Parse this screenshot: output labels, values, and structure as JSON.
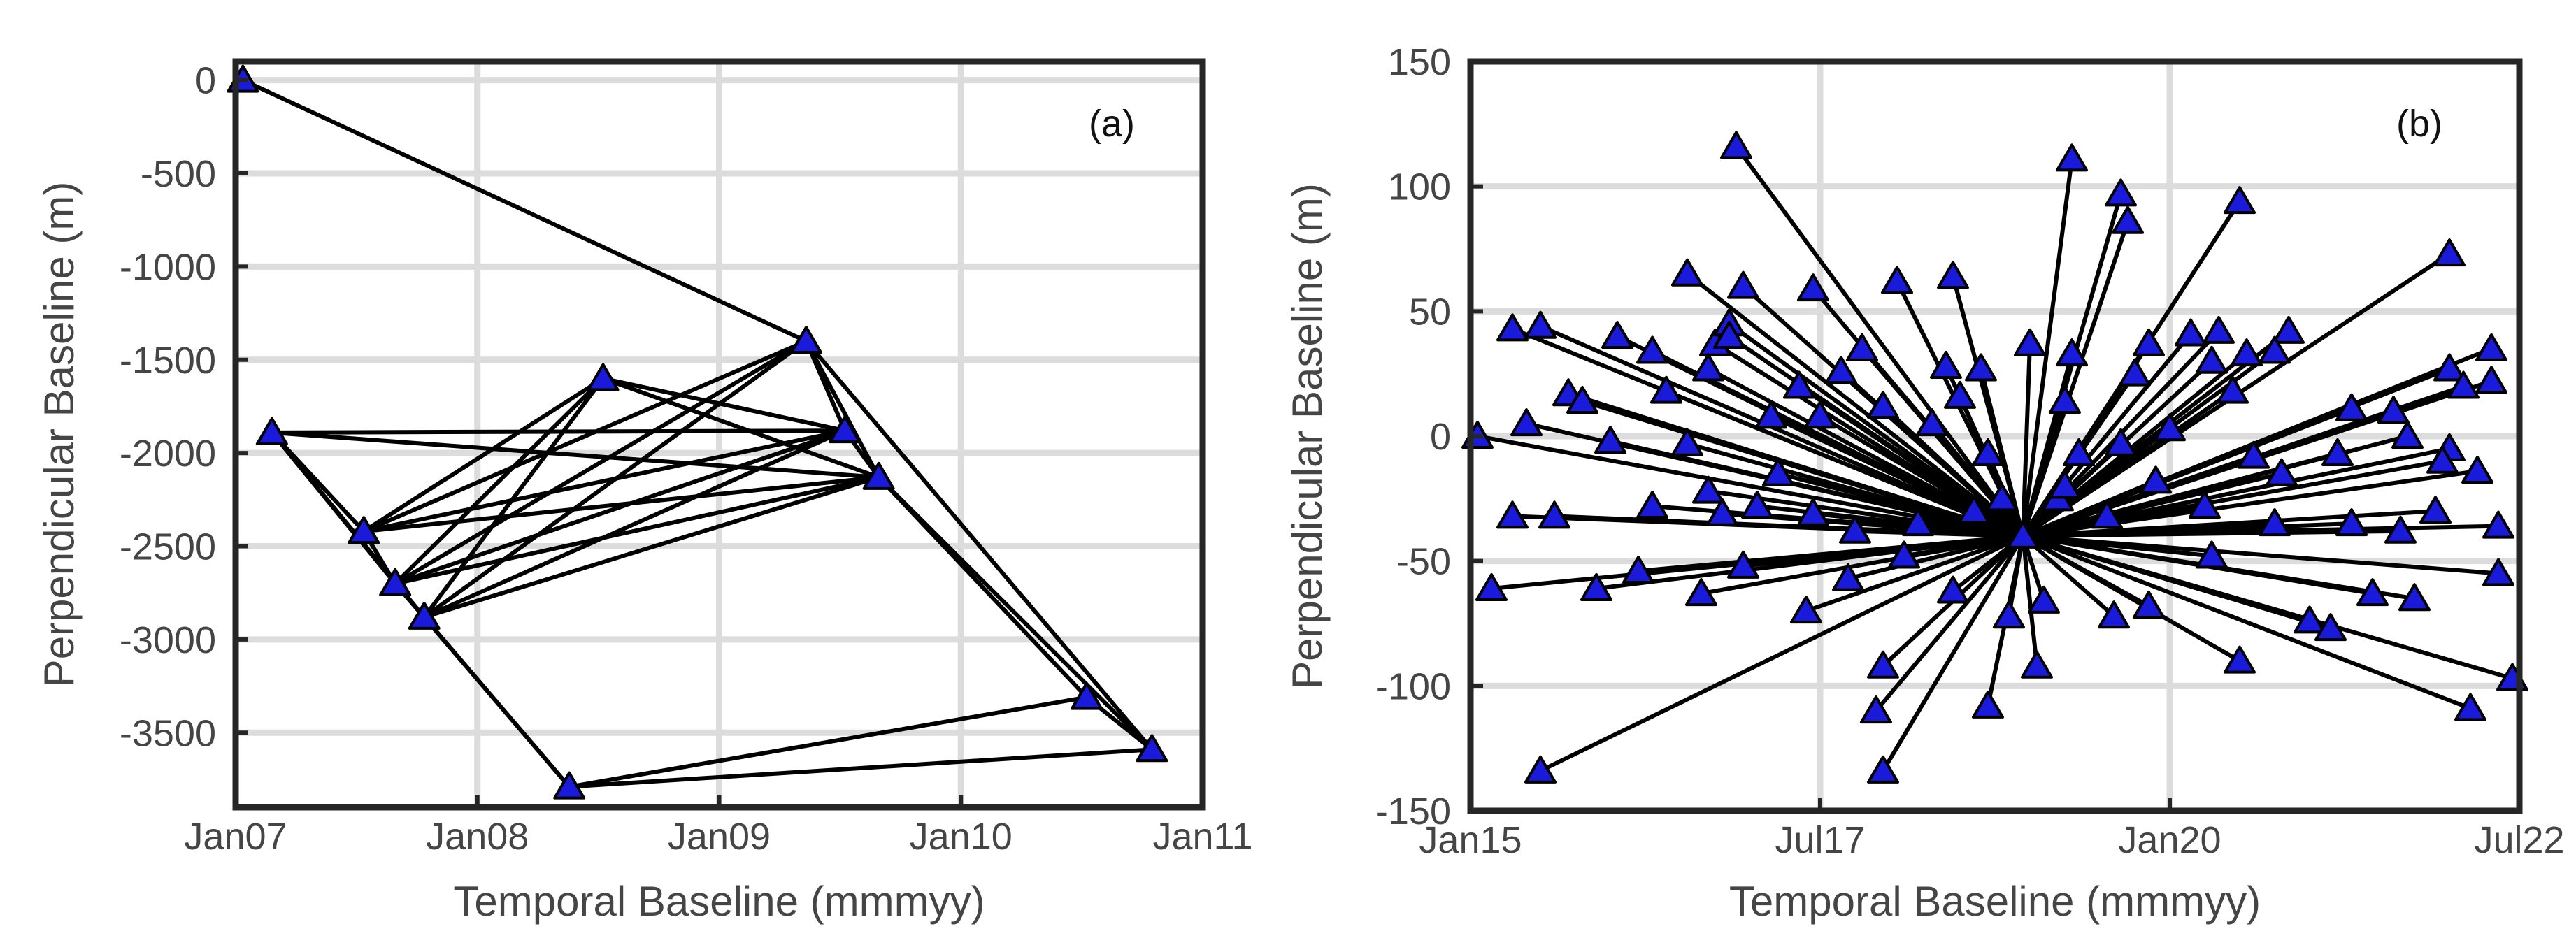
{
  "colors": {
    "marker": "#1a1adb",
    "edge": "#000000",
    "grid": "#dcdcdc",
    "frame": "#262626",
    "text": "#454545"
  },
  "chart_data": [
    {
      "type": "scatter",
      "panel_label": "(a)",
      "title": "",
      "xlabel": "Temporal Baseline (mmmyy)",
      "ylabel": "Perpendicular Baseline (m)",
      "xlim": [
        2007.0,
        2011.0
      ],
      "ylim": [
        -3900,
        100
      ],
      "x_ticks": [
        2007,
        2008,
        2009,
        2010,
        2011
      ],
      "x_tick_labels": [
        "Jan07",
        "Jan08",
        "Jan09",
        "Jan10",
        "Jan11"
      ],
      "y_ticks": [
        0,
        -500,
        -1000,
        -1500,
        -2000,
        -2500,
        -3000,
        -3500
      ],
      "y_tick_labels": [
        "0",
        "-500",
        "-1000",
        "-1500",
        "-2000",
        "-2500",
        "-3000",
        "-3500"
      ],
      "grid": true,
      "nodes": [
        [
          2007.03,
          0
        ],
        [
          2007.15,
          -1890
        ],
        [
          2007.53,
          -2420
        ],
        [
          2007.66,
          -2700
        ],
        [
          2007.78,
          -2880
        ],
        [
          2008.38,
          -3790
        ],
        [
          2008.52,
          -1600
        ],
        [
          2009.36,
          -1400
        ],
        [
          2009.52,
          -1880
        ],
        [
          2009.66,
          -2130
        ],
        [
          2010.52,
          -3310
        ],
        [
          2010.79,
          -3590
        ]
      ],
      "edges": [
        [
          0,
          7
        ],
        [
          1,
          2
        ],
        [
          1,
          3
        ],
        [
          1,
          4
        ],
        [
          1,
          8
        ],
        [
          1,
          9
        ],
        [
          2,
          3
        ],
        [
          2,
          6
        ],
        [
          2,
          7
        ],
        [
          2,
          8
        ],
        [
          2,
          9
        ],
        [
          3,
          4
        ],
        [
          3,
          5
        ],
        [
          3,
          6
        ],
        [
          3,
          7
        ],
        [
          3,
          8
        ],
        [
          3,
          9
        ],
        [
          4,
          5
        ],
        [
          4,
          6
        ],
        [
          4,
          7
        ],
        [
          4,
          8
        ],
        [
          4,
          9
        ],
        [
          5,
          10
        ],
        [
          5,
          11
        ],
        [
          6,
          8
        ],
        [
          6,
          9
        ],
        [
          7,
          8
        ],
        [
          7,
          9
        ],
        [
          7,
          11
        ],
        [
          8,
          9
        ],
        [
          9,
          10
        ],
        [
          9,
          11
        ],
        [
          10,
          11
        ]
      ]
    },
    {
      "type": "scatter",
      "panel_label": "(b)",
      "title": "",
      "xlabel": "Temporal Baseline (mmmyy)",
      "ylabel": "Perpendicular Baseline (m)",
      "xlim": [
        2015.0,
        2022.5
      ],
      "ylim": [
        -150,
        150
      ],
      "x_ticks": [
        2015.0,
        2017.5,
        2020.0,
        2022.5
      ],
      "x_tick_labels": [
        "Jan15",
        "Jul17",
        "Jan20",
        "Jul22"
      ],
      "y_ticks": [
        150,
        100,
        50,
        0,
        -50,
        -100,
        -150
      ],
      "y_tick_labels": [
        "150",
        "100",
        "50",
        "0",
        "-50",
        "-100",
        "-150"
      ],
      "grid": true,
      "hub": [
        2018.95,
        -40
      ],
      "nodes": [
        [
          2016.9,
          116
        ],
        [
          2019.3,
          111
        ],
        [
          2019.65,
          97
        ],
        [
          2019.7,
          86
        ],
        [
          2020.5,
          94
        ],
        [
          2022.0,
          73
        ],
        [
          2016.55,
          65
        ],
        [
          2016.95,
          60
        ],
        [
          2017.45,
          59
        ],
        [
          2018.05,
          62
        ],
        [
          2018.45,
          64
        ],
        [
          2015.3,
          43
        ],
        [
          2015.5,
          44
        ],
        [
          2016.05,
          40
        ],
        [
          2016.3,
          34
        ],
        [
          2016.75,
          37
        ],
        [
          2016.85,
          45
        ],
        [
          2016.85,
          40
        ],
        [
          2017.8,
          35
        ],
        [
          2018.65,
          27
        ],
        [
          2019.0,
          37
        ],
        [
          2019.3,
          33
        ],
        [
          2019.85,
          37
        ],
        [
          2020.15,
          41
        ],
        [
          2020.35,
          42
        ],
        [
          2020.55,
          33
        ],
        [
          2020.85,
          42
        ],
        [
          2020.75,
          34
        ],
        [
          2022.3,
          35
        ],
        [
          2022.0,
          27
        ],
        [
          2015.7,
          17
        ],
        [
          2015.8,
          14
        ],
        [
          2016.4,
          18
        ],
        [
          2016.7,
          27
        ],
        [
          2017.35,
          20
        ],
        [
          2017.65,
          26
        ],
        [
          2018.4,
          28
        ],
        [
          2018.5,
          16
        ],
        [
          2019.25,
          14
        ],
        [
          2019.75,
          25
        ],
        [
          2020.3,
          30
        ],
        [
          2020.45,
          18
        ],
        [
          2021.3,
          11
        ],
        [
          2021.6,
          10
        ],
        [
          2022.1,
          20
        ],
        [
          2022.3,
          22
        ],
        [
          2015.05,
          0
        ],
        [
          2015.4,
          5
        ],
        [
          2016.0,
          -2
        ],
        [
          2016.55,
          -3
        ],
        [
          2017.15,
          8
        ],
        [
          2017.5,
          8
        ],
        [
          2017.95,
          12
        ],
        [
          2018.3,
          5
        ],
        [
          2018.7,
          -7
        ],
        [
          2019.35,
          -7
        ],
        [
          2019.65,
          -3
        ],
        [
          2020.0,
          3
        ],
        [
          2020.6,
          -8
        ],
        [
          2021.2,
          -7
        ],
        [
          2021.7,
          0
        ],
        [
          2022.0,
          -5
        ],
        [
          2022.2,
          -14
        ],
        [
          2015.3,
          -32
        ],
        [
          2015.6,
          -32
        ],
        [
          2016.3,
          -28
        ],
        [
          2016.7,
          -22
        ],
        [
          2016.8,
          -31
        ],
        [
          2017.05,
          -28
        ],
        [
          2017.45,
          -31
        ],
        [
          2017.75,
          -38
        ],
        [
          2018.2,
          -35
        ],
        [
          2018.6,
          -30
        ],
        [
          2019.2,
          -25
        ],
        [
          2019.55,
          -32
        ],
        [
          2020.25,
          -28
        ],
        [
          2020.75,
          -35
        ],
        [
          2021.3,
          -35
        ],
        [
          2021.65,
          -38
        ],
        [
          2021.9,
          -30
        ],
        [
          2022.35,
          -36
        ],
        [
          2015.15,
          -61
        ],
        [
          2015.9,
          -61
        ],
        [
          2016.2,
          -54
        ],
        [
          2016.65,
          -63
        ],
        [
          2016.95,
          -52
        ],
        [
          2017.7,
          -57
        ],
        [
          2018.1,
          -48
        ],
        [
          2018.45,
          -62
        ],
        [
          2019.1,
          -66
        ],
        [
          2019.6,
          -72
        ],
        [
          2019.85,
          -68
        ],
        [
          2020.3,
          -48
        ],
        [
          2021.0,
          -74
        ],
        [
          2021.15,
          -77
        ],
        [
          2021.45,
          -63
        ],
        [
          2021.75,
          -65
        ],
        [
          2022.35,
          -55
        ],
        [
          2017.4,
          -70
        ],
        [
          2018.85,
          -72
        ],
        [
          2019.05,
          -92
        ],
        [
          2017.95,
          -92
        ],
        [
          2017.9,
          -110
        ],
        [
          2018.7,
          -108
        ],
        [
          2020.5,
          -90
        ],
        [
          2022.15,
          -109
        ],
        [
          2022.45,
          -97
        ],
        [
          2015.5,
          -134
        ],
        [
          2017.95,
          -134
        ],
        [
          2019.25,
          -20
        ],
        [
          2018.8,
          -25
        ],
        [
          2017.2,
          -15
        ],
        [
          2020.8,
          -15
        ],
        [
          2021.95,
          -10
        ],
        [
          2019.9,
          -18
        ]
      ]
    }
  ]
}
